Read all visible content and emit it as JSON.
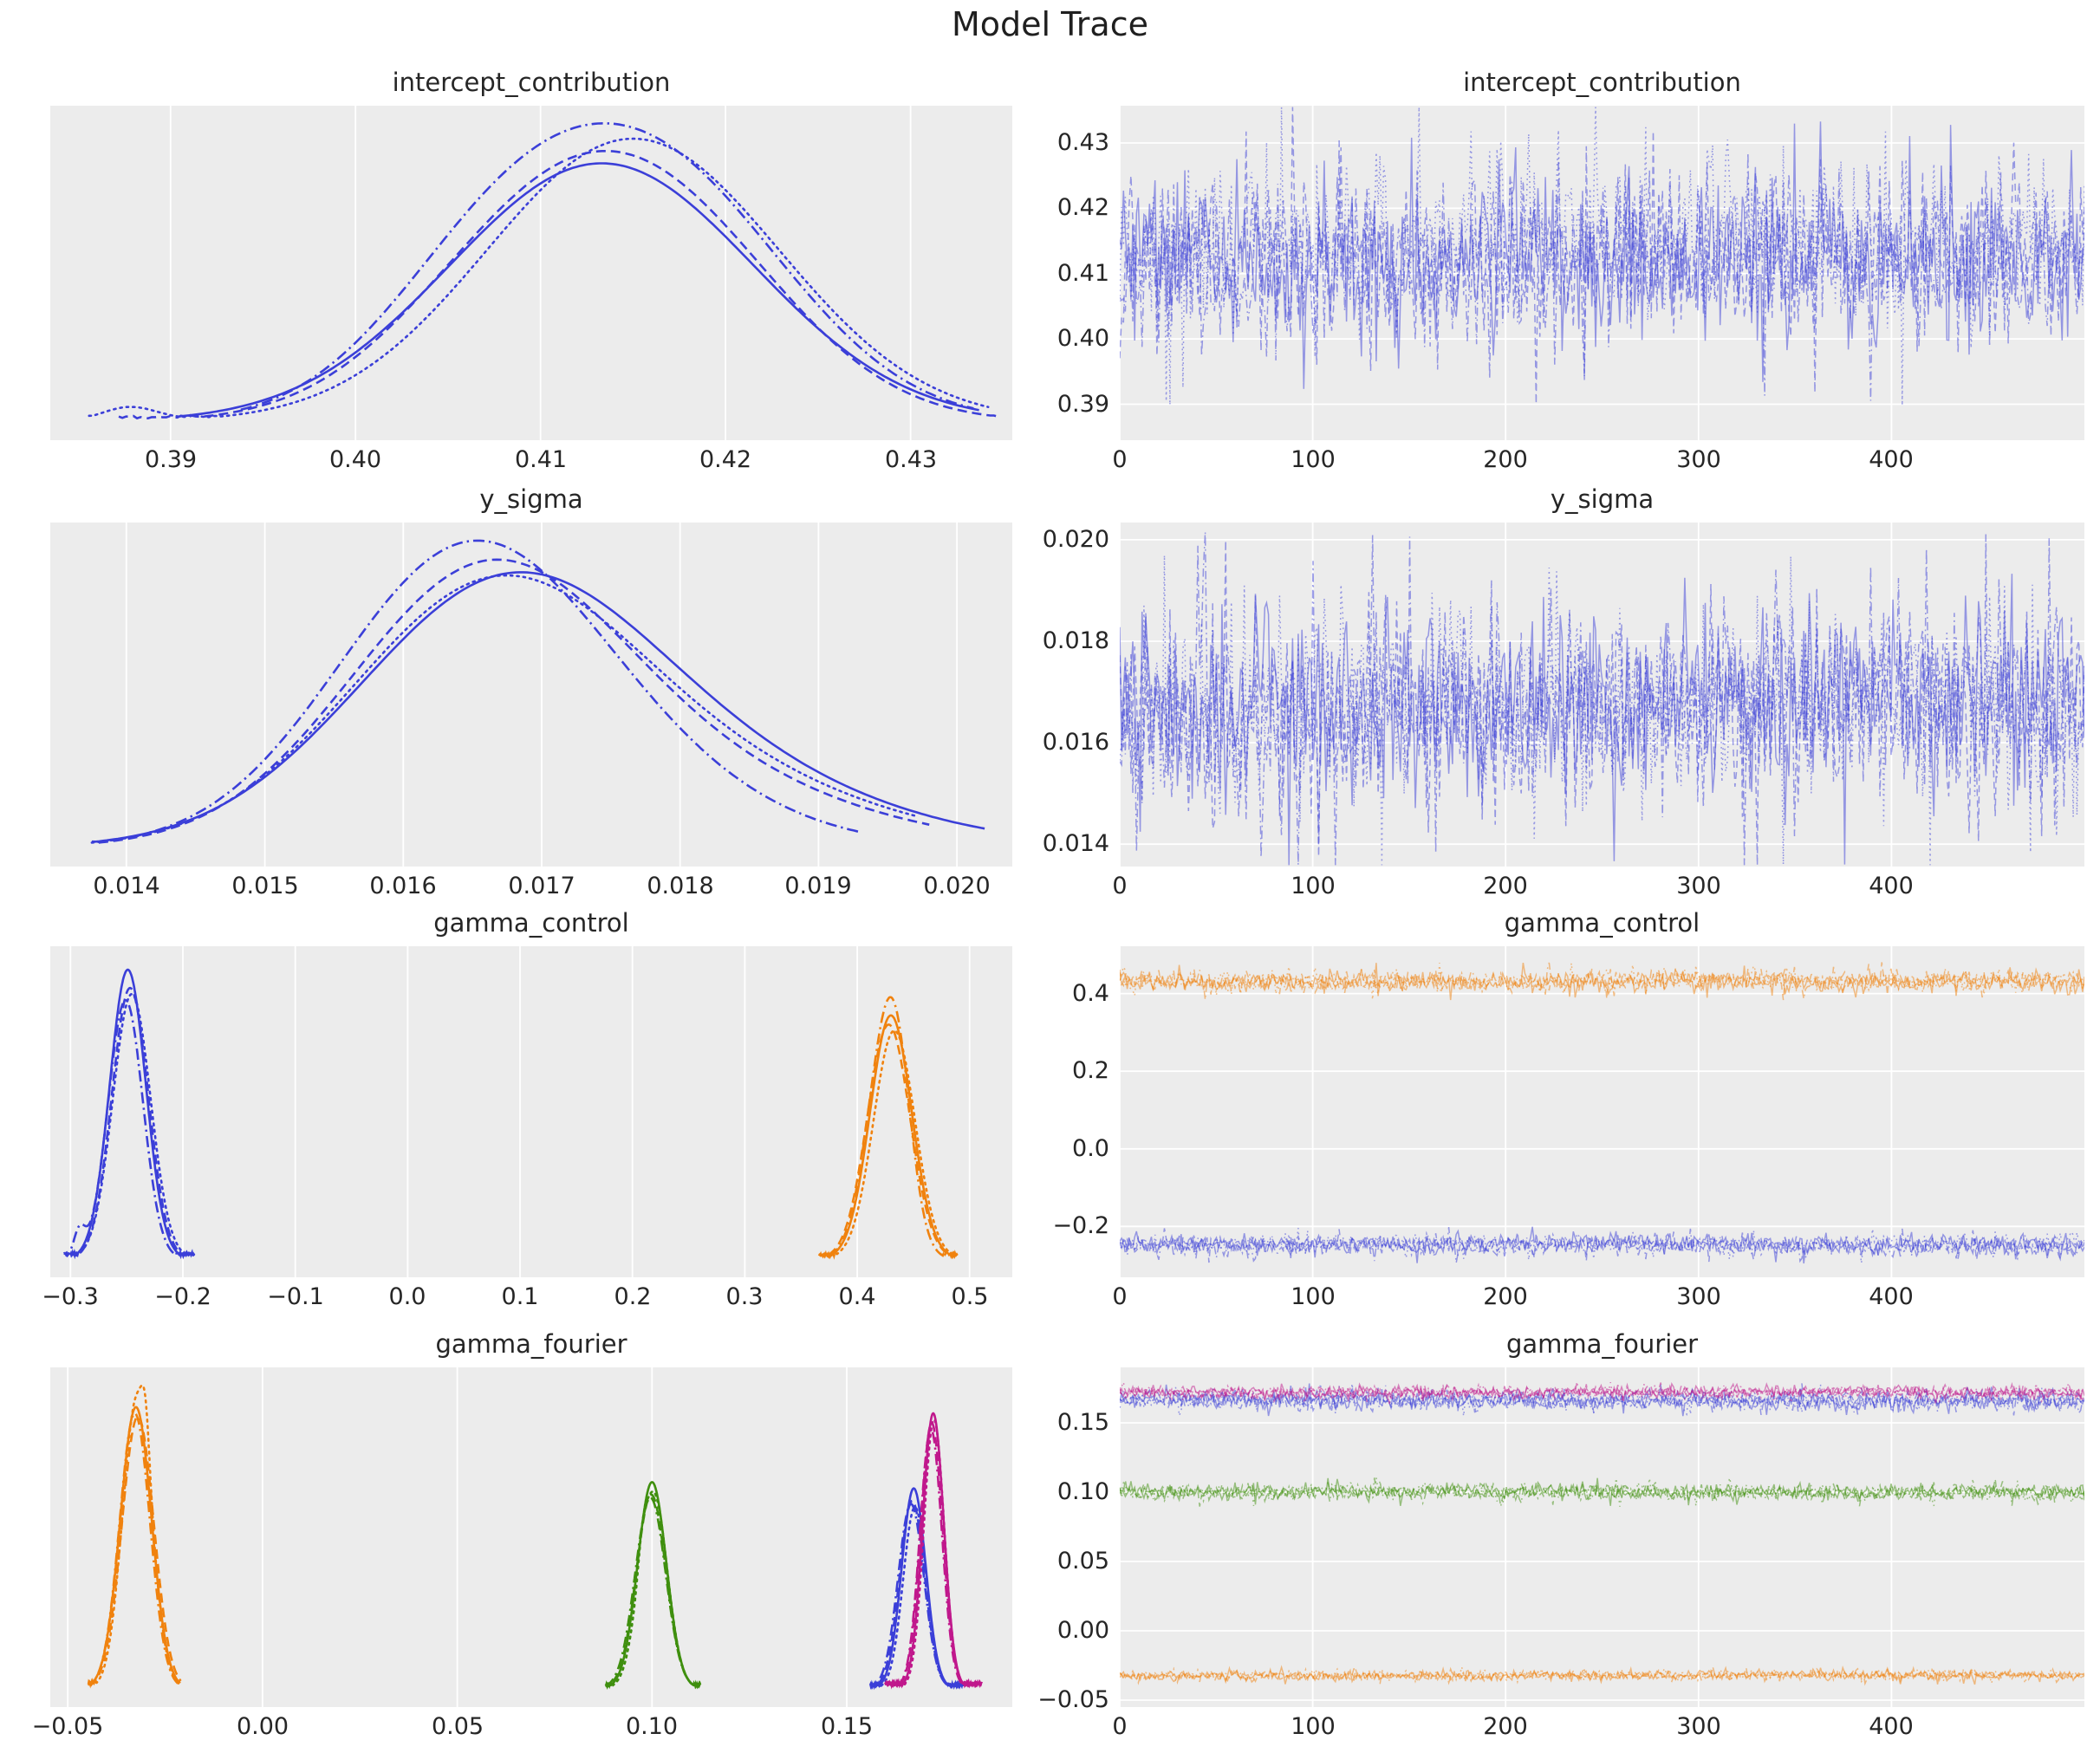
{
  "figure": {
    "title": "Model Trace",
    "plot_background": "#ececec",
    "grid_color": "#ffffff",
    "text_color": "#262626",
    "chains": 4,
    "chain_styles": [
      "solid",
      "dashed",
      "dotted",
      "dash-dot"
    ],
    "draws_per_chain": 500
  },
  "colors": {
    "blue": "#3b3fd8",
    "orange": "#f0820e",
    "green": "#3f8f0e",
    "magenta": "#c0188c"
  },
  "chart_data": [
    {
      "id": "kde-intercept_contribution",
      "type": "kde",
      "title": "intercept_contribution",
      "col": 0,
      "row": 0,
      "xlim": [
        0.3835,
        0.4355
      ],
      "xticks": [
        0.39,
        0.4,
        0.41,
        0.42,
        0.43
      ],
      "xtick_labels": [
        "0.39",
        "0.40",
        "0.41",
        "0.42",
        "0.43"
      ],
      "series": [
        {
          "color": "blue",
          "chains": [
            {
              "style": "solid",
              "components": [
                [
                  1,
                  0.4133,
                  0.0082
                ]
              ],
              "height": 0.84,
              "range": [
                0.3905,
                0.4337
              ]
            },
            {
              "style": "dashed",
              "components": [
                [
                  0.92,
                  0.4097,
                  0.0068
                ],
                [
                  0.85,
                  0.4175,
                  0.0066
                ]
              ],
              "height": 0.88,
              "range": [
                0.3872,
                0.4347
              ]
            },
            {
              "style": "dotted",
              "components": [
                [
                  1,
                  0.415,
                  0.0079
                ],
                [
                  0.05,
                  0.3878,
                  0.0015
                ]
              ],
              "height": 0.92,
              "range": [
                0.3856,
                0.4342
              ]
            },
            {
              "style": "dash-dot",
              "components": [
                [
                  1,
                  0.4163,
                  0.0071
                ],
                [
                  0.52,
                  0.4072,
                  0.006
                ]
              ],
              "height": 0.97,
              "range": [
                0.3938,
                0.4334
              ]
            }
          ]
        }
      ]
    },
    {
      "id": "trace-intercept_contribution",
      "type": "trace",
      "title": "intercept_contribution",
      "col": 1,
      "row": 0,
      "xlim": [
        0,
        500
      ],
      "xticks": [
        0,
        100,
        200,
        300,
        400
      ],
      "xtick_labels": [
        "0",
        "100",
        "200",
        "300",
        "400"
      ],
      "ylim": [
        0.3845,
        0.4357
      ],
      "yticks": [
        0.39,
        0.4,
        0.41,
        0.42,
        0.43
      ],
      "ytick_labels": [
        "0.39",
        "0.40",
        "0.41",
        "0.42",
        "0.43"
      ],
      "series": [
        {
          "color": "blue",
          "mean": 0.4133,
          "sd": 0.0062
        }
      ]
    },
    {
      "id": "kde-y_sigma",
      "type": "kde",
      "title": "y_sigma",
      "col": 0,
      "row": 1,
      "xlim": [
        0.01345,
        0.0204
      ],
      "xticks": [
        0.014,
        0.015,
        0.016,
        0.017,
        0.018,
        0.019,
        0.02
      ],
      "xtick_labels": [
        "0.014",
        "0.015",
        "0.016",
        "0.017",
        "0.018",
        "0.019",
        "0.020"
      ],
      "series": [
        {
          "color": "blue",
          "chains": [
            {
              "style": "solid",
              "components": [
                [
                  1,
                  0.0167,
                  0.00107
                ],
                [
                  0.28,
                  0.0181,
                  0.0013
                ]
              ],
              "height": 0.87,
              "range": [
                0.01375,
                0.0202
              ]
            },
            {
              "style": "dashed",
              "components": [
                [
                  1,
                  0.01655,
                  0.00097
                ],
                [
                  0.3,
                  0.0178,
                  0.0013
                ]
              ],
              "height": 0.91,
              "range": [
                0.0138,
                0.0198
              ]
            },
            {
              "style": "dotted",
              "components": [
                [
                  1,
                  0.0166,
                  0.00102
                ],
                [
                  0.3,
                  0.018,
                  0.0013
                ]
              ],
              "height": 0.86,
              "range": [
                0.01375,
                0.0197
              ]
            },
            {
              "style": "dash-dot",
              "components": [
                [
                  1,
                  0.01638,
                  0.00092
                ],
                [
                  0.42,
                  0.01715,
                  0.0011
                ]
              ],
              "height": 0.97,
              "range": [
                0.0139,
                0.0193
              ]
            }
          ]
        }
      ]
    },
    {
      "id": "trace-y_sigma",
      "type": "trace",
      "title": "y_sigma",
      "col": 1,
      "row": 1,
      "xlim": [
        0,
        500
      ],
      "xticks": [
        0,
        100,
        200,
        300,
        400
      ],
      "xtick_labels": [
        "0",
        "100",
        "200",
        "300",
        "400"
      ],
      "ylim": [
        0.01356,
        0.02034
      ],
      "yticks": [
        0.014,
        0.016,
        0.018,
        0.02
      ],
      "ytick_labels": [
        "0.014",
        "0.016",
        "0.018",
        "0.020"
      ],
      "series": [
        {
          "color": "blue",
          "mean": 0.0166,
          "sd": 0.00092
        }
      ]
    },
    {
      "id": "kde-gamma_control",
      "type": "kde",
      "title": "gamma_control",
      "col": 0,
      "row": 2,
      "xlim": [
        -0.318,
        0.538
      ],
      "xticks": [
        -0.3,
        -0.2,
        -0.1,
        0.0,
        0.1,
        0.2,
        0.3,
        0.4,
        0.5
      ],
      "xtick_labels": [
        "−0.3",
        "−0.2",
        "−0.1",
        "0.0",
        "0.1",
        "0.2",
        "0.3",
        "0.4",
        "0.5"
      ],
      "series": [
        {
          "color": "blue",
          "chains": [
            {
              "style": "solid",
              "components": [
                [
                  1,
                  -0.249,
                  0.016
                ]
              ],
              "height": 0.95,
              "range": [
                -0.3,
                -0.193
              ]
            },
            {
              "style": "dashed",
              "components": [
                [
                  1,
                  -0.247,
                  0.0162
                ]
              ],
              "height": 0.89,
              "range": [
                -0.298,
                -0.191
              ]
            },
            {
              "style": "dotted",
              "components": [
                [
                  1,
                  -0.2455,
                  0.0168
                ]
              ],
              "height": 0.87,
              "range": [
                -0.296,
                -0.19
              ]
            },
            {
              "style": "dash-dot",
              "components": [
                [
                  1,
                  -0.251,
                  0.0155
                ],
                [
                  0.1,
                  -0.292,
                  0.005
                ]
              ],
              "height": 0.85,
              "range": [
                -0.306,
                -0.196
              ]
            }
          ]
        },
        {
          "color": "orange",
          "chains": [
            {
              "style": "solid",
              "components": [
                [
                  1,
                  0.43,
                  0.0185
                ]
              ],
              "height": 0.8,
              "range": [
                0.37,
                0.488
              ]
            },
            {
              "style": "dashed",
              "components": [
                [
                  1,
                  0.428,
                  0.019
                ]
              ],
              "height": 0.77,
              "range": [
                0.368,
                0.486
              ]
            },
            {
              "style": "dotted",
              "components": [
                [
                  1,
                  0.433,
                  0.0185
                ]
              ],
              "height": 0.75,
              "range": [
                0.373,
                0.49
              ]
            },
            {
              "style": "dash-dot",
              "components": [
                [
                  1,
                  0.4255,
                  0.0175
                ],
                [
                  0.3,
                  0.437,
                  0.012
                ]
              ],
              "height": 0.86,
              "range": [
                0.366,
                0.484
              ]
            }
          ]
        }
      ]
    },
    {
      "id": "trace-gamma_control",
      "type": "trace",
      "title": "gamma_control",
      "col": 1,
      "row": 2,
      "xlim": [
        0,
        500
      ],
      "xticks": [
        0,
        100,
        200,
        300,
        400
      ],
      "xtick_labels": [
        "0",
        "100",
        "200",
        "300",
        "400"
      ],
      "ylim": [
        -0.331,
        0.522
      ],
      "yticks": [
        -0.2,
        0.0,
        0.2,
        0.4
      ],
      "ytick_labels": [
        "−0.2",
        "0.0",
        "0.2",
        "0.4"
      ],
      "series": [
        {
          "color": "orange",
          "mean": 0.432,
          "sd": 0.0125
        },
        {
          "color": "blue",
          "mean": -0.249,
          "sd": 0.0125
        }
      ]
    },
    {
      "id": "kde-gamma_fourier",
      "type": "kde",
      "title": "gamma_fourier",
      "col": 0,
      "row": 3,
      "xlim": [
        -0.0545,
        0.1925
      ],
      "xticks": [
        -0.05,
        0.0,
        0.05,
        0.1,
        0.15
      ],
      "xtick_labels": [
        "−0.05",
        "0.00",
        "0.05",
        "0.10",
        "0.15"
      ],
      "series": [
        {
          "color": "orange",
          "chains": [
            {
              "style": "solid",
              "components": [
                [
                  1,
                  -0.0325,
                  0.004
                ]
              ],
              "height": 0.9,
              "range": [
                -0.0445,
                -0.0212
              ]
            },
            {
              "style": "dashed",
              "components": [
                [
                  1,
                  -0.032,
                  0.0041
                ]
              ],
              "height": 0.87,
              "range": [
                -0.044,
                -0.021
              ]
            },
            {
              "style": "dotted",
              "components": [
                [
                  1,
                  -0.0322,
                  0.0037
                ],
                [
                  0.15,
                  -0.03,
                  0.001
                ]
              ],
              "height": 0.97,
              "range": [
                -0.0438,
                -0.0215
              ]
            },
            {
              "style": "dash-dot",
              "components": [
                [
                  1,
                  -0.0328,
                  0.0039
                ]
              ],
              "height": 0.88,
              "range": [
                -0.0448,
                -0.0218
              ]
            }
          ]
        },
        {
          "color": "green",
          "chains": [
            {
              "style": "solid",
              "components": [
                [
                  1,
                  0.1,
                  0.0037
                ]
              ],
              "height": 0.66,
              "range": [
                0.0885,
                0.1125
              ]
            },
            {
              "style": "dashed",
              "components": [
                [
                  1,
                  0.0998,
                  0.0038
                ]
              ],
              "height": 0.62,
              "range": [
                0.088,
                0.112
              ]
            },
            {
              "style": "dotted",
              "components": [
                [
                  1,
                  0.1003,
                  0.0036
                ],
                [
                  0.1,
                  0.0975,
                  0.001
                ]
              ],
              "height": 0.63,
              "range": [
                0.0888,
                0.1118
              ]
            },
            {
              "style": "dash-dot",
              "components": [
                [
                  1,
                  0.0996,
                  0.0039
                ]
              ],
              "height": 0.61,
              "range": [
                0.0882,
                0.1122
              ]
            }
          ]
        },
        {
          "color": "blue",
          "chains": [
            {
              "style": "solid",
              "components": [
                [
                  1,
                  0.1672,
                  0.0031
                ]
              ],
              "height": 0.64,
              "range": [
                0.157,
                0.1795
              ]
            },
            {
              "style": "dashed",
              "components": [
                [
                  1,
                  0.1668,
                  0.0032
                ]
              ],
              "height": 0.6,
              "range": [
                0.1565,
                0.179
              ]
            },
            {
              "style": "dotted",
              "components": [
                [
                  1,
                  0.1675,
                  0.003
                ]
              ],
              "height": 0.58,
              "range": [
                0.1575,
                0.18
              ]
            },
            {
              "style": "dash-dot",
              "components": [
                [
                  1,
                  0.1665,
                  0.0033
                ]
              ],
              "height": 0.59,
              "range": [
                0.156,
                0.1792
              ]
            }
          ]
        },
        {
          "color": "magenta",
          "chains": [
            {
              "style": "solid",
              "components": [
                [
                  1,
                  0.1722,
                  0.0027
                ]
              ],
              "height": 0.88,
              "range": [
                0.1602,
                0.1845
              ]
            },
            {
              "style": "dashed",
              "components": [
                [
                  1,
                  0.1718,
                  0.0028
                ]
              ],
              "height": 0.85,
              "range": [
                0.16,
                0.184
              ]
            },
            {
              "style": "dotted",
              "components": [
                [
                  1,
                  0.1724,
                  0.0026
                ]
              ],
              "height": 0.86,
              "range": [
                0.1605,
                0.1848
              ]
            },
            {
              "style": "dash-dot",
              "components": [
                [
                  1,
                  0.1716,
                  0.0028
                ]
              ],
              "height": 0.83,
              "range": [
                0.1598,
                0.1842
              ]
            }
          ]
        }
      ]
    },
    {
      "id": "trace-gamma_fourier",
      "type": "trace",
      "title": "gamma_fourier",
      "col": 1,
      "row": 3,
      "xlim": [
        0,
        500
      ],
      "xticks": [
        0,
        100,
        200,
        300,
        400
      ],
      "xtick_labels": [
        "0",
        "100",
        "200",
        "300",
        "400"
      ],
      "ylim": [
        -0.055,
        0.19
      ],
      "yticks": [
        -0.05,
        0.0,
        0.05,
        0.1,
        0.15
      ],
      "ytick_labels": [
        "−0.05",
        "0.00",
        "0.05",
        "0.10",
        "0.15"
      ],
      "series": [
        {
          "color": "orange",
          "mean": -0.0322,
          "sd": 0.0017
        },
        {
          "color": "green",
          "mean": 0.1,
          "sd": 0.0027
        },
        {
          "color": "blue",
          "mean": 0.1665,
          "sd": 0.0031
        },
        {
          "color": "magenta",
          "mean": 0.1718,
          "sd": 0.0021
        }
      ]
    }
  ]
}
